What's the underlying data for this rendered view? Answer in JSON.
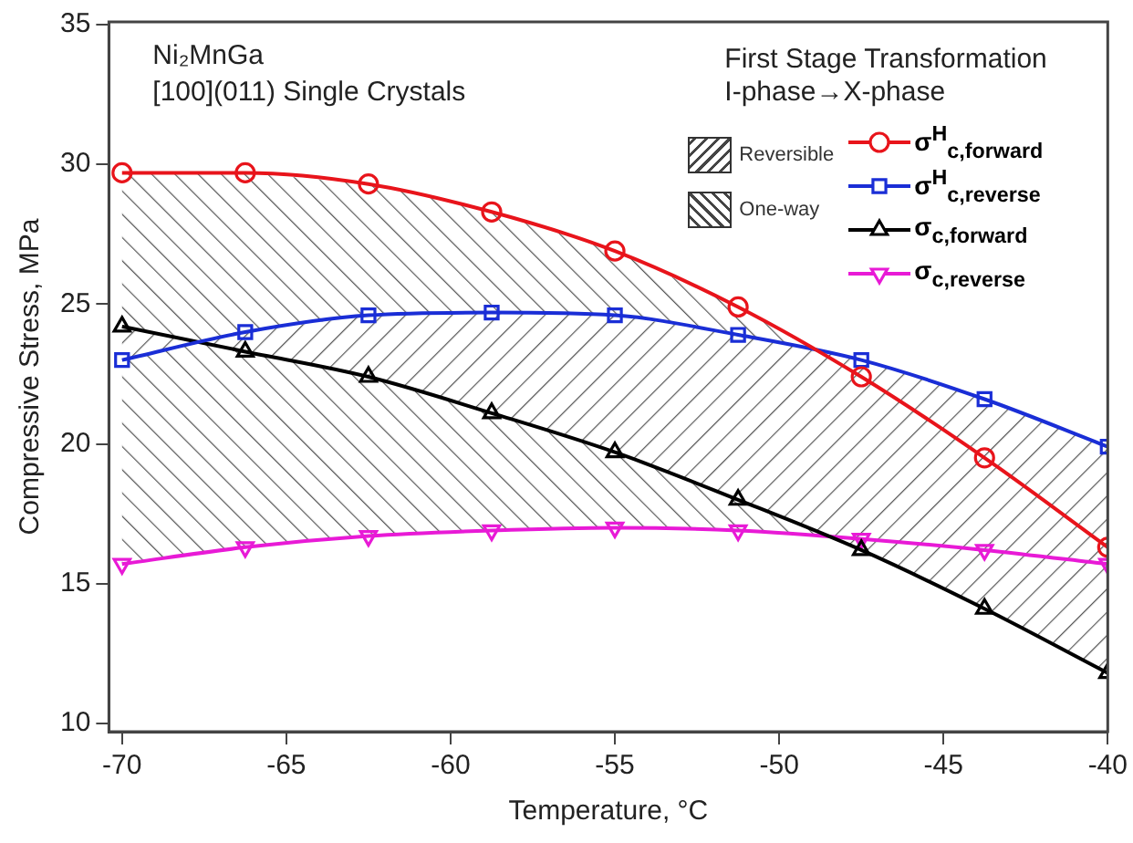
{
  "chart_data": {
    "type": "line",
    "xlabel": "Temperature, °C",
    "ylabel": "Compressive Stress, MPa",
    "x": [
      -70,
      -66.25,
      -62.5,
      -58.75,
      -55,
      -51.25,
      -47.5,
      -43.75,
      -40
    ],
    "xlim": [
      -70.4,
      -40
    ],
    "xticks": [
      -70,
      -65,
      -60,
      -55,
      -50,
      -45,
      -40
    ],
    "ylim": [
      9.7,
      35.1
    ],
    "yticks": [
      10,
      15,
      20,
      25,
      30,
      35
    ],
    "grid": false,
    "legend": "top right",
    "series": [
      {
        "name": "σ$^{H}$$_{c,forward}$",
        "color": "#e8141b",
        "marker": "circle",
        "values": [
          29.7,
          29.7,
          29.3,
          28.3,
          26.9,
          24.9,
          22.4,
          19.5,
          16.3
        ]
      },
      {
        "name": "σ$^{H}$$_{c,reverse}$",
        "color": "#1a2ed6",
        "marker": "square",
        "values": [
          23.0,
          24.0,
          24.6,
          24.7,
          24.6,
          23.9,
          23.0,
          21.6,
          19.9
        ]
      },
      {
        "name": "σ$_{c,forward}$",
        "color": "#000000",
        "marker": "triangle",
        "values": [
          24.2,
          23.3,
          22.4,
          21.1,
          19.7,
          18.0,
          16.2,
          14.1,
          11.8
        ]
      },
      {
        "name": "σ$_{c,reverse}$",
        "color": "#e81ad6",
        "marker": "triangle-down",
        "values": [
          15.7,
          16.3,
          16.7,
          16.9,
          17.0,
          16.9,
          16.6,
          16.2,
          15.7
        ]
      }
    ],
    "annotations": [
      "Ni₂MnGa",
      "[100](011) Single Crystals",
      "First Stage Transformation",
      "I-phase→X-phase",
      "Reversible",
      "One-way"
    ]
  }
}
